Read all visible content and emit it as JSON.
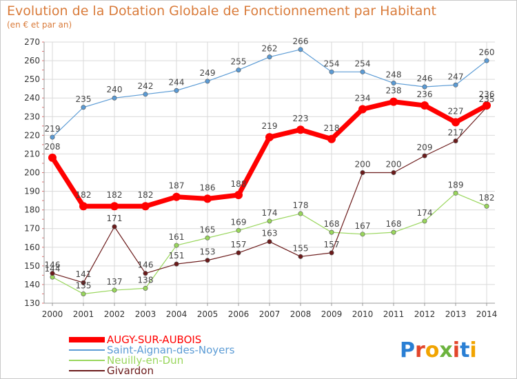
{
  "title": "Evolution de la Dotation Globale de Fonctionnement par Habitant",
  "subtitle": "(en € et par an)",
  "logo": {
    "text": "Proxiti",
    "letters": [
      "P",
      "r",
      "o",
      "x",
      "i",
      "t",
      "i"
    ],
    "colors": [
      "#2a7fd4",
      "#e2452b",
      "#f1a400",
      "#6cb33e",
      "#e2452b",
      "#2a7fd4",
      "#f1a400"
    ]
  },
  "colors": {
    "title": "#d97b3a",
    "grid": "#d9d9d9",
    "axis": "#999999",
    "tickmark": "#e07070"
  },
  "chart_data": {
    "type": "line",
    "title": "Evolution de la Dotation Globale de Fonctionnement par Habitant",
    "subtitle": "(en € et par an)",
    "x": [
      "2000",
      "2001",
      "2002",
      "2003",
      "2004",
      "2005",
      "2006",
      "2007",
      "2008",
      "2009",
      "2010",
      "2011",
      "2012",
      "2013",
      "2014"
    ],
    "yticks": [
      130,
      140,
      150,
      160,
      170,
      180,
      190,
      200,
      210,
      220,
      230,
      240,
      250,
      260,
      270
    ],
    "ylim": [
      130,
      270
    ],
    "grid": true,
    "legend_position": "bottom-left",
    "series": [
      {
        "name": "AUGY-SUR-AUBOIS",
        "color": "#ff0000",
        "stroke": 7,
        "marker": 6,
        "values": [
          208,
          182,
          182,
          182,
          187,
          186,
          188,
          219,
          223,
          218,
          234,
          238,
          236,
          227,
          236
        ]
      },
      {
        "name": "Saint-Aignan-des-Noyers",
        "color": "#5b9bd5",
        "stroke": 1.2,
        "marker": 3.2,
        "values": [
          219,
          235,
          240,
          242,
          244,
          249,
          255,
          262,
          266,
          254,
          254,
          248,
          246,
          247,
          260
        ]
      },
      {
        "name": "Neuilly-en-Dun",
        "color": "#99d65c",
        "stroke": 1.2,
        "marker": 3.2,
        "values": [
          144,
          135,
          137,
          138,
          161,
          165,
          169,
          174,
          178,
          168,
          167,
          168,
          174,
          189,
          182
        ]
      },
      {
        "name": "Givardon",
        "color": "#6b1a1a",
        "stroke": 1.2,
        "marker": 3.2,
        "values": [
          146,
          141,
          171,
          146,
          151,
          153,
          157,
          163,
          155,
          157,
          200,
          200,
          209,
          217,
          235
        ]
      }
    ]
  }
}
